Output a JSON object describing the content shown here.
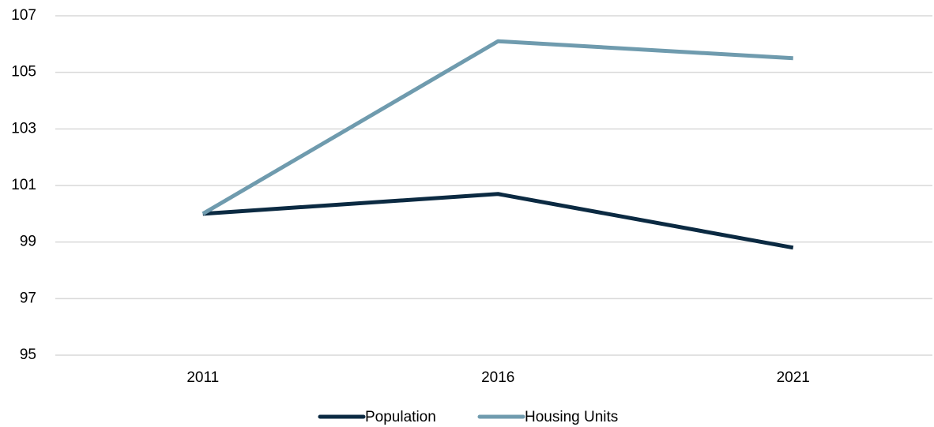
{
  "chart_data": {
    "type": "line",
    "categories": [
      "2011",
      "2016",
      "2021"
    ],
    "series": [
      {
        "name": "Population",
        "color": "#0b2a42",
        "values": [
          100,
          100.7,
          98.8
        ]
      },
      {
        "name": "Housing Units",
        "color": "#6f9bae",
        "values": [
          100,
          106.1,
          105.5
        ]
      }
    ],
    "ylim": [
      95,
      107
    ],
    "yticks": [
      95,
      97,
      99,
      101,
      103,
      105,
      107
    ],
    "grid": true,
    "legend": "bottom"
  }
}
